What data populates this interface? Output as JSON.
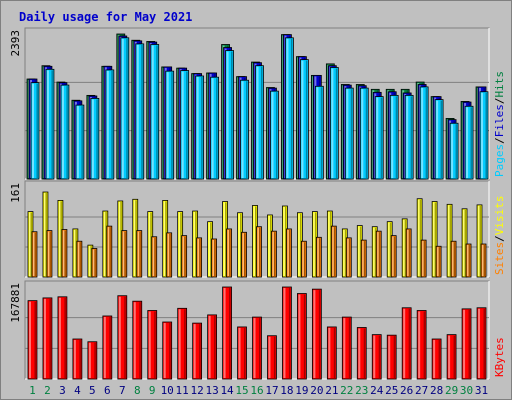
{
  "chart_data": {
    "type": "bar",
    "title": "Daily usage for May 2021",
    "categories": [
      "1",
      "2",
      "3",
      "4",
      "5",
      "6",
      "7",
      "8",
      "9",
      "10",
      "11",
      "12",
      "13",
      "14",
      "15",
      "16",
      "17",
      "18",
      "19",
      "20",
      "21",
      "22",
      "23",
      "24",
      "25",
      "26",
      "27",
      "28",
      "29",
      "30",
      "31"
    ],
    "weekend_days": [
      "1",
      "2",
      "8",
      "9",
      "15",
      "16",
      "22",
      "23",
      "29",
      "30"
    ],
    "panels": [
      {
        "id": "top",
        "y_max_label": "2393",
        "y_max": 2393,
        "legend": [
          "Pages",
          "Files",
          "Hits"
        ],
        "series": [
          {
            "name": "Hits",
            "color": "#008040",
            "values": [
              1650,
              1870,
              1600,
              1300,
              1380,
              1860,
              2393,
              2290,
              2270,
              1850,
              1830,
              1740,
              1750,
              2220,
              1690,
              1930,
              1510,
              2383,
              2020,
              1710,
              1900,
              1560,
              1560,
              1480,
              1480,
              1480,
              1600,
              1360,
              1000,
              1280,
              1520
            ]
          },
          {
            "name": "Files",
            "color": "#0000cc",
            "values": [
              1650,
              1860,
              1590,
              1290,
              1370,
              1860,
              2360,
              2280,
              2260,
              1850,
              1830,
              1740,
              1750,
              2170,
              1690,
              1920,
              1500,
              2383,
              2020,
              1710,
              1870,
              1550,
              1540,
              1430,
              1440,
              1420,
              1560,
              1360,
              980,
              1270,
              1520
            ]
          },
          {
            "name": "Pages",
            "color": "#00ccff",
            "values": [
              1590,
              1810,
              1550,
              1220,
              1330,
              1800,
              2330,
              2230,
              2220,
              1780,
              1790,
              1700,
              1680,
              2120,
              1630,
              1870,
              1450,
              2330,
              1970,
              1530,
              1840,
              1500,
              1500,
              1360,
              1380,
              1380,
              1520,
              1310,
              920,
              1200,
              1440
            ]
          }
        ]
      },
      {
        "id": "mid",
        "y_max_label": "161",
        "y_max": 161,
        "legend": [
          "Sites",
          "Visits"
        ],
        "series": [
          {
            "name": "Visits",
            "color": "#ffff00",
            "values": [
              117,
              152,
              137,
              86,
              57,
              118,
              136,
              139,
              117,
              137,
              117,
              118,
              99,
              135,
              115,
              128,
              111,
              127,
              115,
              117,
              118,
              86,
              92,
              90,
              99,
              104,
              140,
              135,
              130,
              122,
              129
            ]
          },
          {
            "name": "Sites",
            "color": "#ff8000",
            "values": [
              81,
              83,
              85,
              64,
              51,
              91,
              83,
              83,
              72,
              79,
              74,
              70,
              68,
              86,
              80,
              90,
              82,
              86,
              64,
              71,
              91,
              70,
              66,
              82,
              74,
              86,
              66,
              55,
              64,
              59,
              59
            ]
          }
        ]
      },
      {
        "id": "bot",
        "y_max_label": "167881",
        "y_max": 167881,
        "legend": [
          "KBytes"
        ],
        "series": [
          {
            "name": "KBytes",
            "color": "#ff0000",
            "values": [
              143000,
              148000,
              150000,
              73000,
              68000,
              115000,
              152000,
              142000,
              125000,
              104000,
              129000,
              102000,
              117000,
              167881,
              95000,
              113000,
              79000,
              167881,
              156000,
              164000,
              95000,
              113000,
              94000,
              81000,
              80000,
              130000,
              125000,
              73000,
              81000,
              128000,
              130000
            ]
          }
        ]
      }
    ]
  },
  "colors": {
    "weekday_label": "#008040",
    "weekend_label": "#008040",
    "plain_label": "#000080"
  }
}
